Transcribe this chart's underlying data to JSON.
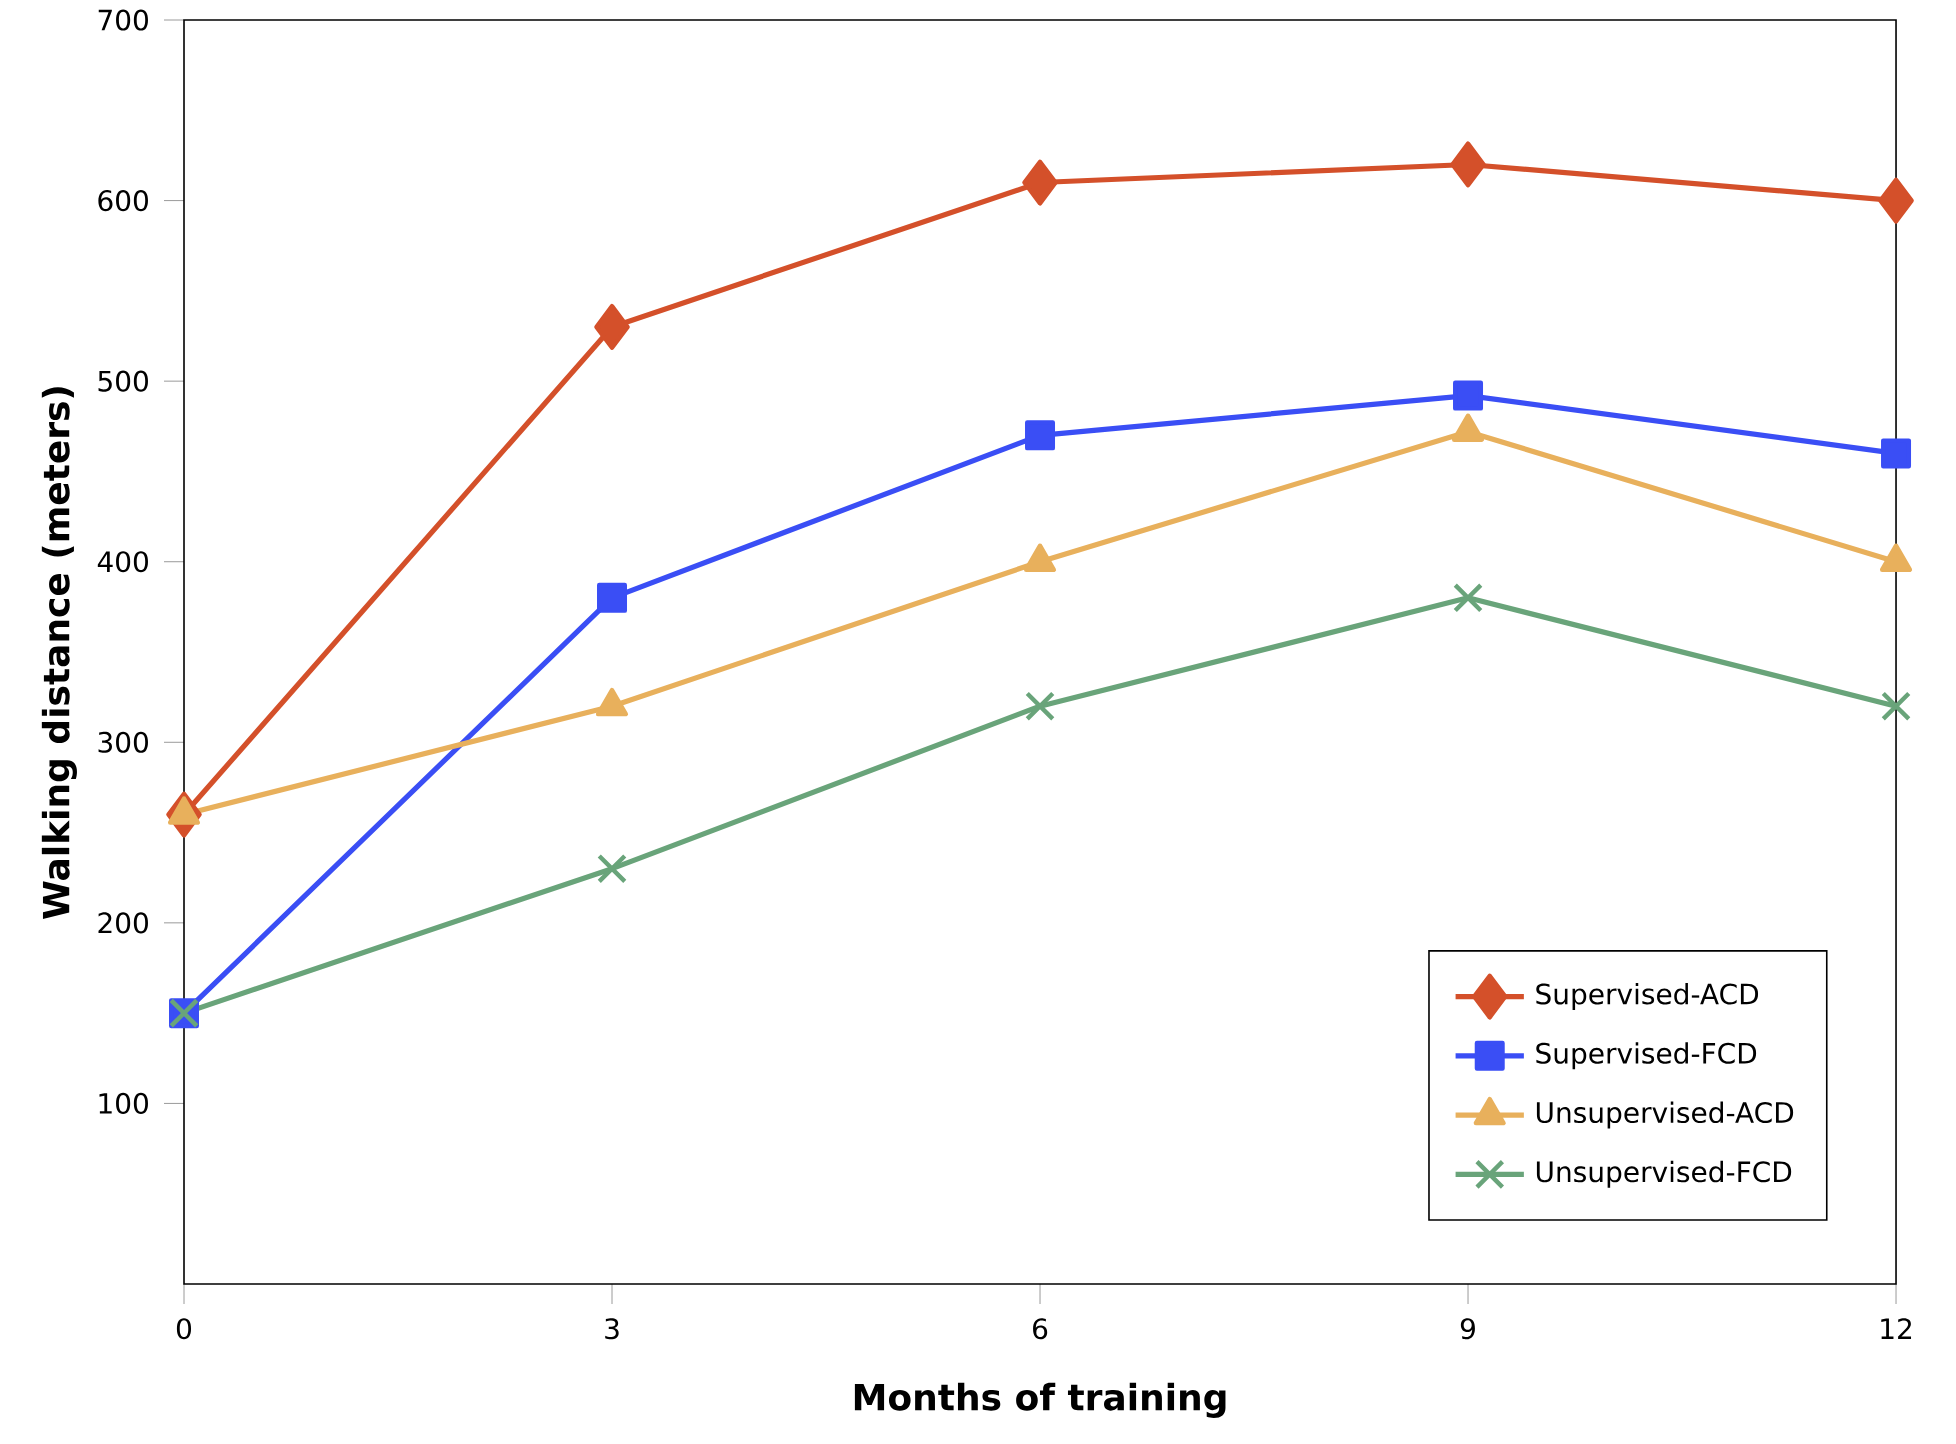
{
  "chart_data": {
    "type": "line",
    "xlabel": "Months of training",
    "ylabel": "Walking distance (meters)",
    "x": [
      0,
      3,
      6,
      9,
      12
    ],
    "xlim": [
      0,
      12
    ],
    "xticks": [
      0,
      3,
      6,
      9,
      12
    ],
    "ylim": [
      0,
      700
    ],
    "yticks": [
      100,
      200,
      300,
      400,
      500,
      600,
      700
    ],
    "grid": false,
    "legend": "bottom right",
    "series": [
      {
        "name": "Supervised-ACD",
        "color": "#d4502a",
        "marker": "diamond",
        "values": [
          260,
          530,
          610,
          620,
          600
        ]
      },
      {
        "name": "Supervised-FCD",
        "color": "#3a4ef5",
        "marker": "square",
        "values": [
          150,
          380,
          470,
          492,
          460
        ]
      },
      {
        "name": "Unsupervised-ACD",
        "color": "#e8b05c",
        "marker": "triangle",
        "values": [
          260,
          320,
          400,
          472,
          400
        ]
      },
      {
        "name": "Unsupervised-FCD",
        "color": "#69a47a",
        "marker": "cross",
        "values": [
          150,
          230,
          320,
          380,
          320
        ]
      }
    ]
  }
}
